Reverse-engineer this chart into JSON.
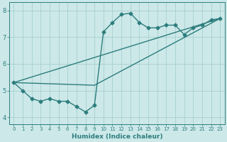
{
  "line1_x": [
    0,
    1,
    2,
    3,
    4,
    5,
    6,
    7,
    8,
    9,
    10,
    11,
    12,
    13,
    14,
    15,
    16,
    17,
    18,
    19,
    20,
    21,
    22,
    23
  ],
  "line1_y": [
    5.3,
    5.0,
    4.7,
    4.6,
    4.7,
    4.6,
    4.6,
    4.4,
    4.2,
    4.45,
    7.2,
    7.55,
    7.85,
    7.9,
    7.55,
    7.35,
    7.35,
    7.45,
    7.45,
    7.1,
    7.35,
    7.45,
    7.65,
    7.7
  ],
  "line2_x": [
    0,
    23
  ],
  "line2_y": [
    5.3,
    7.7
  ],
  "line3_x": [
    0,
    9,
    23
  ],
  "line3_y": [
    5.3,
    5.2,
    7.7
  ],
  "line_color": "#2d7d7d",
  "bg_color": "#cce8e8",
  "grid_color": "#a8cfcf",
  "xlabel": "Humidex (Indice chaleur)",
  "xlim": [
    -0.5,
    23.5
  ],
  "ylim": [
    3.75,
    8.3
  ],
  "yticks": [
    4,
    5,
    6,
    7,
    8
  ],
  "xticks": [
    0,
    1,
    2,
    3,
    4,
    5,
    6,
    7,
    8,
    9,
    10,
    11,
    12,
    13,
    14,
    15,
    16,
    17,
    18,
    19,
    20,
    21,
    22,
    23
  ],
  "marker": "D",
  "markersize": 2.5,
  "linewidth": 1.0
}
